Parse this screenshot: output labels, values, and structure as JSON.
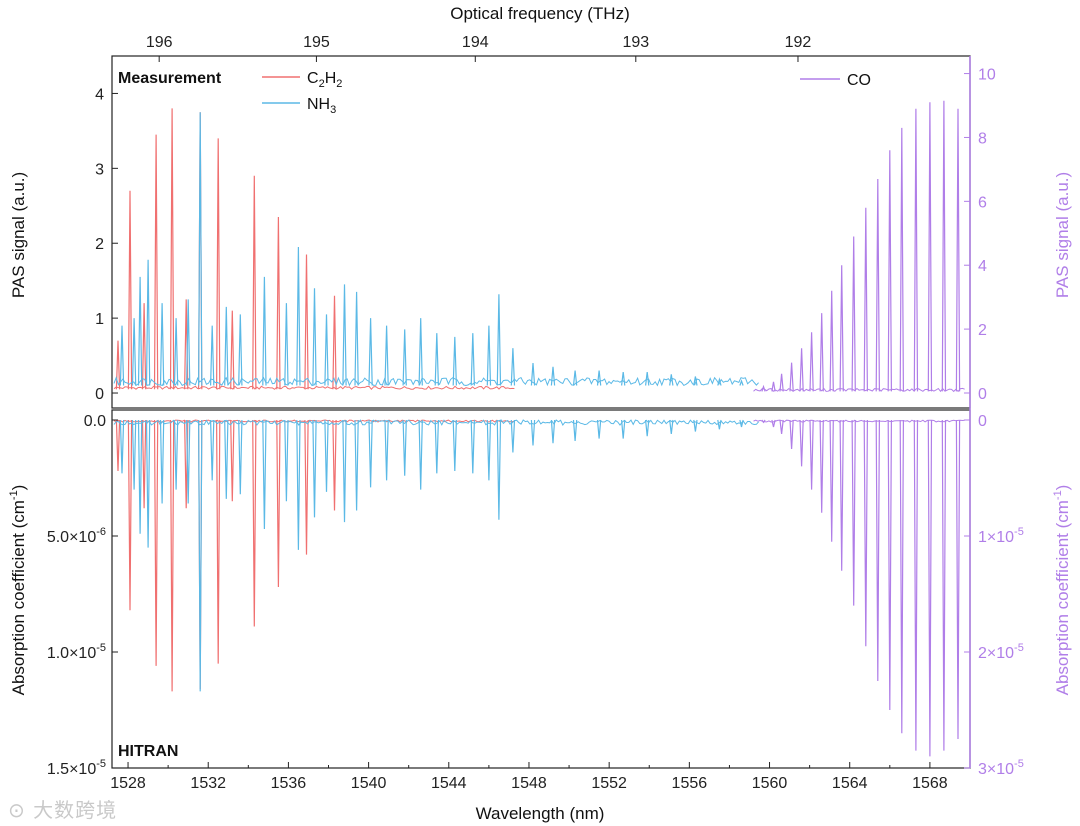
{
  "colors": {
    "c2h2": "#f07070",
    "nh3": "#5bb9e6",
    "co": "#b07ee8",
    "axis": "#222222"
  },
  "watermark": "⊙ 大数跨境",
  "chart_data": {
    "type": "line",
    "x_axis": {
      "label": "Wavelength (nm)",
      "range": [
        1527.2,
        1570
      ],
      "ticks": [
        1528,
        1532,
        1536,
        1540,
        1544,
        1548,
        1552,
        1556,
        1560,
        1564,
        1568
      ],
      "tick_labels": [
        "1528",
        "1532",
        "1536",
        "1540",
        "1544",
        "1548",
        "1552",
        "1556",
        "1560",
        "1564",
        "1568"
      ]
    },
    "top_axis": {
      "label": "Optical frequency (THz)",
      "ticks": [
        196,
        195,
        194,
        193,
        192
      ],
      "tick_labels": [
        "196",
        "195",
        "194",
        "193",
        "192"
      ]
    },
    "panels": [
      {
        "name": "Measurement",
        "label": "Measurement",
        "y_left": {
          "label": "PAS signal (a.u.)",
          "range": [
            -0.2,
            4.5
          ],
          "ticks": [
            0,
            1,
            2,
            3,
            4
          ],
          "tick_labels": [
            "0",
            "1",
            "2",
            "3",
            "4"
          ]
        },
        "y_right": {
          "label": "PAS signal (a.u.)",
          "range": [
            -0.47,
            10.55
          ],
          "ticks": [
            0,
            2,
            4,
            6,
            8,
            10
          ],
          "tick_labels": [
            "0",
            "2",
            "4",
            "6",
            "8",
            "10"
          ]
        },
        "legend": [
          {
            "series": "C2H2",
            "label_main": "C",
            "sub1": "2",
            "mid": "H",
            "sub2": "2",
            "color_key": "c2h2"
          },
          {
            "series": "NH3",
            "label_main": "NH",
            "sub1": "3",
            "color_key": "nh3"
          },
          {
            "series": "CO",
            "label_main": "CO",
            "color_key": "co"
          }
        ],
        "series": [
          {
            "name": "C2H2",
            "baseline": 0.05,
            "range": [
              1527.3,
              1547.3
            ],
            "peaks_nm": [
              1527.5,
              1528.1,
              1528.8,
              1529.4,
              1530.2,
              1530.9,
              1531.6,
              1532.5,
              1533.2,
              1534.3,
              1535.5,
              1536.9,
              1538.3
            ],
            "peaks_value": [
              0.7,
              2.7,
              1.2,
              3.45,
              3.8,
              1.25,
              3.75,
              3.4,
              1.1,
              2.9,
              2.35,
              1.85,
              1.3
            ]
          },
          {
            "name": "NH3",
            "baseline": 0.1,
            "range": [
              1527.3,
              1559.5
            ],
            "peaks_nm": [
              1527.7,
              1528.3,
              1528.6,
              1529.0,
              1529.7,
              1530.4,
              1531.0,
              1531.6,
              1532.2,
              1532.9,
              1533.6,
              1534.8,
              1535.9,
              1536.5,
              1537.3,
              1537.9,
              1538.8,
              1539.4,
              1540.1,
              1540.9,
              1541.8,
              1542.6,
              1543.4,
              1544.3,
              1545.2,
              1546.0,
              1546.5,
              1547.2,
              1548.2,
              1549.2,
              1550.3,
              1551.5,
              1552.7,
              1553.9,
              1555.1,
              1556.3,
              1557.5,
              1558.6
            ],
            "peaks_value": [
              0.9,
              1.0,
              1.55,
              1.78,
              1.2,
              1.0,
              1.25,
              3.75,
              0.9,
              1.15,
              1.05,
              1.55,
              1.2,
              1.95,
              1.4,
              1.05,
              1.45,
              1.35,
              1.0,
              0.9,
              0.85,
              1.0,
              0.8,
              0.75,
              0.8,
              0.9,
              1.32,
              0.6,
              0.4,
              0.35,
              0.3,
              0.3,
              0.28,
              0.28,
              0.25,
              0.22,
              0.18,
              0.16
            ]
          },
          {
            "name": "CO",
            "axis": "right",
            "baseline": 0.05,
            "range": [
              1559.2,
              1569.8
            ],
            "peaks_nm": [
              1559.7,
              1560.2,
              1560.6,
              1561.1,
              1561.6,
              1562.1,
              1562.6,
              1563.1,
              1563.6,
              1564.2,
              1564.8,
              1565.4,
              1566.0,
              1566.6,
              1567.3,
              1568.0,
              1568.7,
              1569.4
            ],
            "peaks_value": [
              0.2,
              0.35,
              0.6,
              0.95,
              1.4,
              1.9,
              2.5,
              3.2,
              4.0,
              4.9,
              5.8,
              6.7,
              7.6,
              8.3,
              8.9,
              9.1,
              9.15,
              8.9
            ]
          }
        ]
      },
      {
        "name": "HITRAN",
        "label": "HITRAN",
        "y_left": {
          "label": "Absorption coefficient (cm",
          "label_sup": "-1",
          "label_end": ")",
          "range": [
            0,
            1.5e-05
          ],
          "inverted": true,
          "ticks": [
            0,
            5e-06,
            1e-05,
            1.5e-05
          ],
          "tick_labels": [
            "0.0",
            "5.0×10",
            "1.0×10",
            "1.5×10"
          ],
          "tick_exp": [
            "",
            "-6",
            "-5",
            "-5"
          ]
        },
        "y_right": {
          "label": "Absorption coefficient (cm",
          "label_sup": "-1",
          "label_end": ")",
          "range": [
            0,
            3e-05
          ],
          "inverted": true,
          "ticks": [
            0,
            1e-05,
            2e-05,
            3e-05
          ],
          "tick_labels": [
            "0",
            "1×10",
            "2×10",
            "3×10"
          ],
          "tick_exp": [
            "",
            "-5",
            "-5",
            "-5"
          ]
        },
        "series": [
          {
            "name": "C2H2",
            "range": [
              1527.3,
              1547.3
            ],
            "peaks_nm": [
              1527.5,
              1528.1,
              1528.8,
              1529.4,
              1530.2,
              1530.9,
              1531.6,
              1532.5,
              1533.2,
              1534.3,
              1535.5,
              1536.9,
              1538.3
            ],
            "peaks_value": [
              2.2e-06,
              8.2e-06,
              3.8e-06,
              1.06e-05,
              1.17e-05,
              3.8e-06,
              1.16e-05,
              1.05e-05,
              3.5e-06,
              8.9e-06,
              7.2e-06,
              5.8e-06,
              3.9e-06
            ]
          },
          {
            "name": "NH3",
            "range": [
              1527.3,
              1559.5
            ],
            "peaks_nm": [
              1527.7,
              1528.3,
              1528.6,
              1529.0,
              1529.7,
              1530.4,
              1531.0,
              1531.6,
              1532.2,
              1532.9,
              1533.6,
              1534.8,
              1535.9,
              1536.5,
              1537.3,
              1537.9,
              1538.8,
              1539.4,
              1540.1,
              1540.9,
              1541.8,
              1542.6,
              1543.4,
              1544.3,
              1545.2,
              1546.0,
              1546.5,
              1547.2,
              1548.2,
              1549.2,
              1550.3,
              1551.5,
              1552.7,
              1553.9,
              1555.1,
              1556.3,
              1557.5,
              1558.6
            ],
            "peaks_value": [
              2.3e-06,
              3e-06,
              4.9e-06,
              5.5e-06,
              3.6e-06,
              3e-06,
              3.6e-06,
              1.17e-05,
              2.6e-06,
              3.4e-06,
              3.2e-06,
              4.7e-06,
              3.5e-06,
              5.6e-06,
              4.2e-06,
              3.1e-06,
              4.4e-06,
              3.9e-06,
              2.9e-06,
              2.6e-06,
              2.4e-06,
              3e-06,
              2.3e-06,
              2.2e-06,
              2.3e-06,
              2.6e-06,
              4.3e-06,
              1.4e-06,
              1.1e-06,
              1e-06,
              9e-07,
              8e-07,
              8e-07,
              7e-07,
              6e-07,
              5e-07,
              4e-07,
              3e-07
            ]
          },
          {
            "name": "CO",
            "axis": "right",
            "range": [
              1559.2,
              1569.8
            ],
            "peaks_nm": [
              1559.7,
              1560.2,
              1560.6,
              1561.1,
              1561.6,
              1562.1,
              1562.6,
              1563.1,
              1563.6,
              1564.2,
              1564.8,
              1565.4,
              1566.0,
              1566.6,
              1567.3,
              1568.0,
              1568.7,
              1569.4
            ],
            "peaks_value": [
              2e-07,
              6e-07,
              1.2e-06,
              2.5e-06,
              4e-06,
              6e-06,
              8e-06,
              1.05e-05,
              1.3e-05,
              1.6e-05,
              1.95e-05,
              2.25e-05,
              2.5e-05,
              2.7e-05,
              2.85e-05,
              2.9e-05,
              2.85e-05,
              2.75e-05
            ]
          }
        ]
      }
    ]
  }
}
